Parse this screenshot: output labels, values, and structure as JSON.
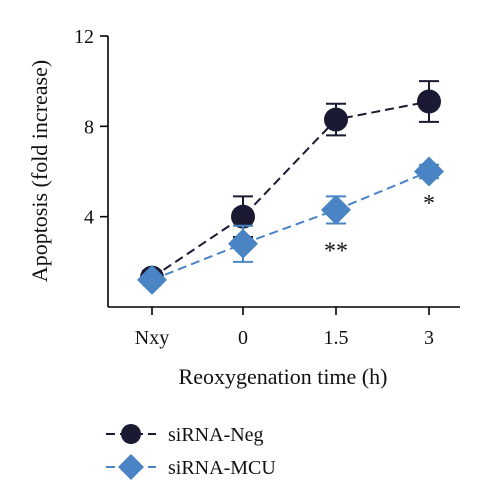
{
  "chart_data": {
    "type": "line",
    "categories": [
      "Nxy",
      "0",
      "1.5",
      "3"
    ],
    "xlabel": "Reoxygenation time (h)",
    "ylabel": "Apoptosis (fold increase)",
    "ylim": [
      0,
      12
    ],
    "yticks": [
      "4",
      "8",
      "12"
    ],
    "legend_position": "bottom-left",
    "grid": false,
    "series": [
      {
        "name": "siRNA-Neg",
        "values": [
          1.3,
          4.0,
          8.3,
          9.1
        ],
        "errors": [
          0.3,
          0.9,
          0.7,
          0.9
        ],
        "color": "#1b1a33",
        "marker": "circle",
        "line_style": "dashed"
      },
      {
        "name": "siRNA-MCU",
        "values": [
          1.2,
          2.8,
          4.3,
          6.0
        ],
        "errors": [
          0.2,
          0.8,
          0.6,
          0.3
        ],
        "color": "#4a84c4",
        "marker": "diamond",
        "line_style": "dashed"
      }
    ],
    "annotations": [
      {
        "category": "1.5",
        "value": 2.5,
        "text": "**"
      },
      {
        "category": "3",
        "value": 4.6,
        "text": "*"
      }
    ]
  }
}
